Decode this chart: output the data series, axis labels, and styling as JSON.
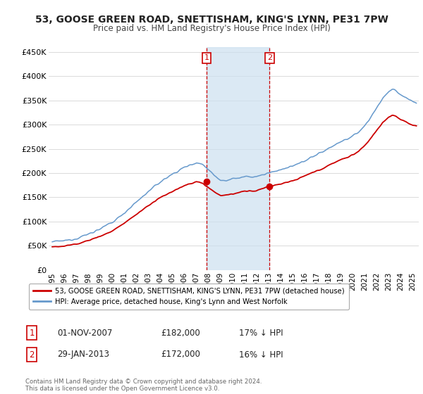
{
  "title": "53, GOOSE GREEN ROAD, SNETTISHAM, KING'S LYNN, PE31 7PW",
  "subtitle": "Price paid vs. HM Land Registry's House Price Index (HPI)",
  "ylabel_ticks": [
    "£0",
    "£50K",
    "£100K",
    "£150K",
    "£200K",
    "£250K",
    "£300K",
    "£350K",
    "£400K",
    "£450K"
  ],
  "ytick_values": [
    0,
    50000,
    100000,
    150000,
    200000,
    250000,
    300000,
    350000,
    400000,
    450000
  ],
  "ylim": [
    0,
    460000
  ],
  "xlim_start": 1994.7,
  "xlim_end": 2025.5,
  "sale1_x": 2007.833,
  "sale1_y": 182000,
  "sale2_x": 2013.083,
  "sale2_y": 172000,
  "sale1_label": "01-NOV-2007",
  "sale2_label": "29-JAN-2013",
  "sale1_price": "£182,000",
  "sale2_price": "£172,000",
  "sale1_hpi": "17% ↓ HPI",
  "sale2_hpi": "16% ↓ HPI",
  "red_line_color": "#cc0000",
  "blue_line_color": "#6699cc",
  "shade_color": "#cce0f0",
  "vline_color": "#cc0000",
  "legend_label1": "53, GOOSE GREEN ROAD, SNETTISHAM, KING'S LYNN, PE31 7PW (detached house)",
  "legend_label2": "HPI: Average price, detached house, King's Lynn and West Norfolk",
  "footer": "Contains HM Land Registry data © Crown copyright and database right 2024.\nThis data is licensed under the Open Government Licence v3.0."
}
